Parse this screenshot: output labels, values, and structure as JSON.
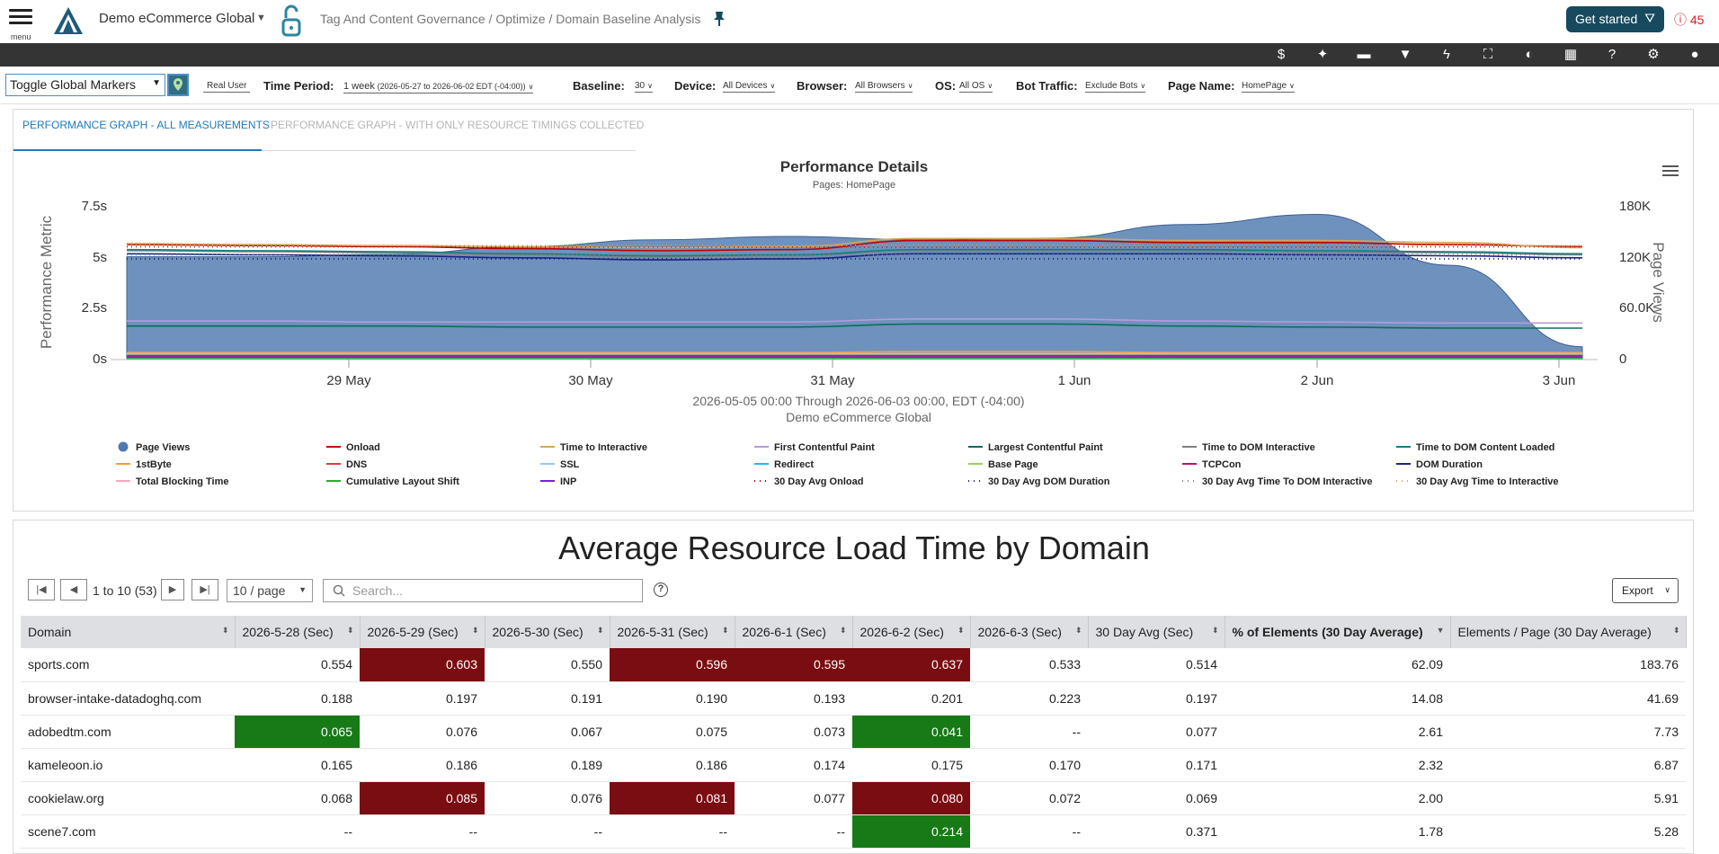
{
  "header": {
    "menu_label": "menu",
    "org_name": "Demo eCommerce Global",
    "breadcrumb": "Tag And Content Governance / Optimize / Domain Baseline Analysis",
    "get_started_label": "Get started",
    "alert_count": "45"
  },
  "toolbar": {
    "icons": [
      "dollar-icon",
      "sparkle-icon",
      "comment-icon",
      "filter-icon",
      "lightning-icon",
      "fullscreen-icon",
      "contrast-icon",
      "film-icon",
      "help-icon",
      "gear-icon",
      "user-icon"
    ]
  },
  "filters": {
    "global_markers": "Toggle Global Markers",
    "real_user": "Real User",
    "time_period_label": "Time Period:",
    "time_period_value": "1 week",
    "time_period_detail": "(2026-05-27 to 2026-06-02 EDT (-04:00))",
    "baseline_label": "Baseline:",
    "baseline_value": "30",
    "device_label": "Device:",
    "device_value": "All Devices",
    "browser_label": "Browser:",
    "browser_value": "All Browsers",
    "os_label": "OS:",
    "os_value": "All OS",
    "bot_label": "Bot Traffic:",
    "bot_value": "Exclude Bots",
    "page_label": "Page Name:",
    "page_value": "HomePage"
  },
  "chart_tabs": {
    "active": "PERFORMANCE GRAPH - ALL MEASUREMENTS",
    "inactive": "PERFORMANCE GRAPH - WITH ONLY RESOURCE TIMINGS COLLECTED"
  },
  "chart_data": {
    "type": "area",
    "title": "Performance Details",
    "subtitle": "Pages: HomePage",
    "ylabel": "Performance Metric",
    "y2label": "Page Views",
    "caption_line1": "2026-05-05 00:00 Through 2026-06-03 00:00, EDT (-04:00)",
    "caption_line2": "Demo eCommerce Global",
    "x_ticks": [
      "29 May",
      "30 May",
      "31 May",
      "1 Jun",
      "2 Jun",
      "3 Jun"
    ],
    "y_ticks": [
      "7.5s",
      "5s",
      "2.5s",
      "0s"
    ],
    "ylim": [
      0,
      7.5
    ],
    "y2_ticks": [
      "180K",
      "120K",
      "60.0K",
      "0"
    ],
    "y2lim": [
      0,
      180000
    ],
    "grid": false,
    "legend_position": "bottom",
    "x": [
      28.5,
      29,
      29.5,
      30,
      30.5,
      31,
      31.5,
      32,
      32.5,
      33,
      33.5,
      34
    ],
    "series": [
      {
        "name": "Page Views",
        "axis": "right",
        "color": "#4f79b0",
        "style": "area",
        "values": [
          120000,
          120000,
          123000,
          132000,
          140000,
          144000,
          140000,
          142000,
          158000,
          170000,
          110000,
          14000
        ]
      },
      {
        "name": "Onload",
        "color": "#c00000",
        "style": "line",
        "values": [
          5.6,
          5.55,
          5.5,
          5.4,
          5.3,
          5.35,
          5.8,
          5.8,
          5.7,
          5.7,
          5.6,
          5.5
        ]
      },
      {
        "name": "Time to Interactive",
        "color": "#d4a55a",
        "style": "line",
        "values": [
          5.65,
          5.6,
          5.55,
          5.5,
          5.45,
          5.5,
          5.9,
          5.9,
          5.8,
          5.8,
          5.7,
          5.45
        ]
      },
      {
        "name": "First Contentful Paint",
        "color": "#b39ddb",
        "style": "line",
        "values": [
          1.85,
          1.85,
          1.8,
          1.8,
          1.8,
          1.8,
          1.95,
          1.95,
          1.85,
          1.8,
          1.75,
          1.75
        ]
      },
      {
        "name": "Largest Contentful Paint",
        "color": "#0b6e58",
        "style": "line",
        "values": [
          1.6,
          1.6,
          1.6,
          1.55,
          1.55,
          1.55,
          1.7,
          1.7,
          1.6,
          1.55,
          1.5,
          1.5
        ]
      },
      {
        "name": "Time to DOM Interactive",
        "color": "#808080",
        "style": "line",
        "values": [
          5.3,
          5.25,
          5.2,
          5.1,
          5.0,
          5.05,
          5.3,
          5.3,
          5.3,
          5.25,
          5.2,
          5.1
        ]
      },
      {
        "name": "Time to DOM Content Loaded",
        "color": "#0f7f7f",
        "style": "line",
        "values": [
          5.35,
          5.3,
          5.25,
          5.15,
          5.05,
          5.1,
          5.35,
          5.35,
          5.35,
          5.3,
          5.25,
          5.15
        ]
      },
      {
        "name": "1stByte",
        "color": "#f0a030",
        "style": "line",
        "values": [
          0.3,
          0.3,
          0.3,
          0.3,
          0.3,
          0.3,
          0.35,
          0.35,
          0.3,
          0.3,
          0.3,
          0.3
        ]
      },
      {
        "name": "DNS",
        "color": "#e53935",
        "style": "line",
        "values": [
          0.05,
          0.05,
          0.05,
          0.05,
          0.05,
          0.05,
          0.05,
          0.05,
          0.05,
          0.05,
          0.05,
          0.05
        ]
      },
      {
        "name": "SSL",
        "color": "#90caf9",
        "style": "line",
        "values": [
          0.1,
          0.1,
          0.1,
          0.1,
          0.1,
          0.1,
          0.1,
          0.1,
          0.1,
          0.1,
          0.1,
          0.1
        ]
      },
      {
        "name": "Redirect",
        "color": "#29b6f6",
        "style": "line",
        "values": [
          0.02,
          0.02,
          0.02,
          0.02,
          0.02,
          0.02,
          0.02,
          0.02,
          0.02,
          0.02,
          0.02,
          0.02
        ]
      },
      {
        "name": "Base Page",
        "color": "#9ccc65",
        "style": "line",
        "values": [
          0.2,
          0.2,
          0.2,
          0.2,
          0.2,
          0.2,
          0.2,
          0.2,
          0.2,
          0.2,
          0.2,
          0.2
        ]
      },
      {
        "name": "TCPCon",
        "color": "#b0127a",
        "style": "line",
        "values": [
          0.08,
          0.08,
          0.08,
          0.08,
          0.08,
          0.08,
          0.08,
          0.08,
          0.08,
          0.08,
          0.08,
          0.08
        ]
      },
      {
        "name": "DOM Duration",
        "color": "#1a237e",
        "style": "line",
        "values": [
          5.15,
          5.1,
          5.05,
          4.95,
          4.85,
          4.9,
          5.15,
          5.15,
          5.15,
          5.1,
          5.05,
          4.95
        ]
      },
      {
        "name": "Total Blocking Time",
        "color": "#f8a5c2",
        "style": "line",
        "values": [
          0.25,
          0.25,
          0.25,
          0.25,
          0.25,
          0.25,
          0.25,
          0.25,
          0.25,
          0.25,
          0.25,
          0.25
        ]
      },
      {
        "name": "Cumulative Layout Shift",
        "color": "#2eaa2e",
        "style": "line",
        "values": [
          0.0,
          0.0,
          0.0,
          0.0,
          0.0,
          0.0,
          0.0,
          0.0,
          0.0,
          0.0,
          0.0,
          0.0
        ]
      },
      {
        "name": "INP",
        "color": "#7b1fe0",
        "style": "line",
        "values": [
          0.15,
          0.15,
          0.15,
          0.15,
          0.15,
          0.15,
          0.15,
          0.15,
          0.15,
          0.15,
          0.15,
          0.15
        ]
      },
      {
        "name": "30 Day Avg Onload",
        "color": "#8b0000",
        "style": "dotted",
        "values": [
          5.5,
          5.5,
          5.5,
          5.5,
          5.5,
          5.5,
          5.5,
          5.5,
          5.5,
          5.5,
          5.5,
          5.5
        ]
      },
      {
        "name": "30 Day Avg DOM Duration",
        "color": "#1a237e",
        "style": "dotted",
        "values": [
          4.9,
          4.9,
          4.9,
          4.9,
          4.9,
          4.9,
          4.9,
          4.9,
          4.9,
          4.9,
          4.9,
          4.9
        ]
      },
      {
        "name": "30 Day Avg Time To DOM Interactive",
        "color": "#808080",
        "style": "dotted",
        "values": [
          5.1,
          5.1,
          5.1,
          5.1,
          5.1,
          5.1,
          5.1,
          5.1,
          5.1,
          5.1,
          5.1,
          5.1
        ]
      },
      {
        "name": "30 Day Avg Time to Interactive",
        "color": "#d4a55a",
        "style": "dotted",
        "values": [
          5.55,
          5.55,
          5.55,
          5.55,
          5.55,
          5.55,
          5.55,
          5.55,
          5.55,
          5.55,
          5.55,
          5.55
        ]
      }
    ]
  },
  "table": {
    "title": "Average Resource Load Time by Domain",
    "pager_text": "1 to 10 (53)",
    "per_page": "10 / page",
    "search_placeholder": "Search...",
    "export_label": "Export",
    "columns": [
      "Domain",
      "2026-5-28 (Sec)",
      "2026-5-29 (Sec)",
      "2026-5-30 (Sec)",
      "2026-5-31 (Sec)",
      "2026-6-1 (Sec)",
      "2026-6-2 (Sec)",
      "2026-6-3 (Sec)",
      "30 Day Avg (Sec)",
      "% of Elements (30 Day Average)",
      "Elements / Page (30 Day Average)"
    ],
    "rows": [
      {
        "cells": [
          "sports.com",
          "0.554",
          "0.603",
          "0.550",
          "0.596",
          "0.595",
          "0.637",
          "0.533",
          "0.514",
          "62.09",
          "183.76"
        ],
        "flags": [
          "",
          "",
          "hi",
          "",
          "hi",
          "hi",
          "hi",
          "",
          "",
          "",
          ""
        ]
      },
      {
        "cells": [
          "browser-intake-datadoghq.com",
          "0.188",
          "0.197",
          "0.191",
          "0.190",
          "0.193",
          "0.201",
          "0.223",
          "0.197",
          "14.08",
          "41.69"
        ],
        "flags": [
          "",
          "",
          "",
          "",
          "",
          "",
          "",
          "",
          "",
          "",
          ""
        ]
      },
      {
        "cells": [
          "adobedtm.com",
          "0.065",
          "0.076",
          "0.067",
          "0.075",
          "0.073",
          "0.041",
          "--",
          "0.077",
          "2.61",
          "7.73"
        ],
        "flags": [
          "",
          "lo",
          "",
          "",
          "",
          "",
          "lo",
          "",
          "",
          "",
          ""
        ]
      },
      {
        "cells": [
          "kameleoon.io",
          "0.165",
          "0.186",
          "0.189",
          "0.186",
          "0.174",
          "0.175",
          "0.170",
          "0.171",
          "2.32",
          "6.87"
        ],
        "flags": [
          "",
          "",
          "",
          "",
          "",
          "",
          "",
          "",
          "",
          "",
          ""
        ]
      },
      {
        "cells": [
          "cookielaw.org",
          "0.068",
          "0.085",
          "0.076",
          "0.081",
          "0.077",
          "0.080",
          "0.072",
          "0.069",
          "2.00",
          "5.91"
        ],
        "flags": [
          "",
          "",
          "hi",
          "",
          "hi",
          "",
          "hi",
          "",
          "",
          "",
          ""
        ]
      },
      {
        "cells": [
          "scene7.com",
          "--",
          "--",
          "--",
          "--",
          "--",
          "0.214",
          "--",
          "0.371",
          "1.78",
          "5.28"
        ],
        "flags": [
          "",
          "",
          "",
          "",
          "",
          "",
          "lo",
          "",
          "",
          "",
          ""
        ]
      }
    ]
  },
  "colors": {
    "brand": "#174a5e",
    "toolbar_bg": "#343434",
    "tab_active": "#1f7ab8",
    "cell_high": "#7a0d11",
    "cell_low": "#177a17",
    "alert": "#d32027"
  }
}
